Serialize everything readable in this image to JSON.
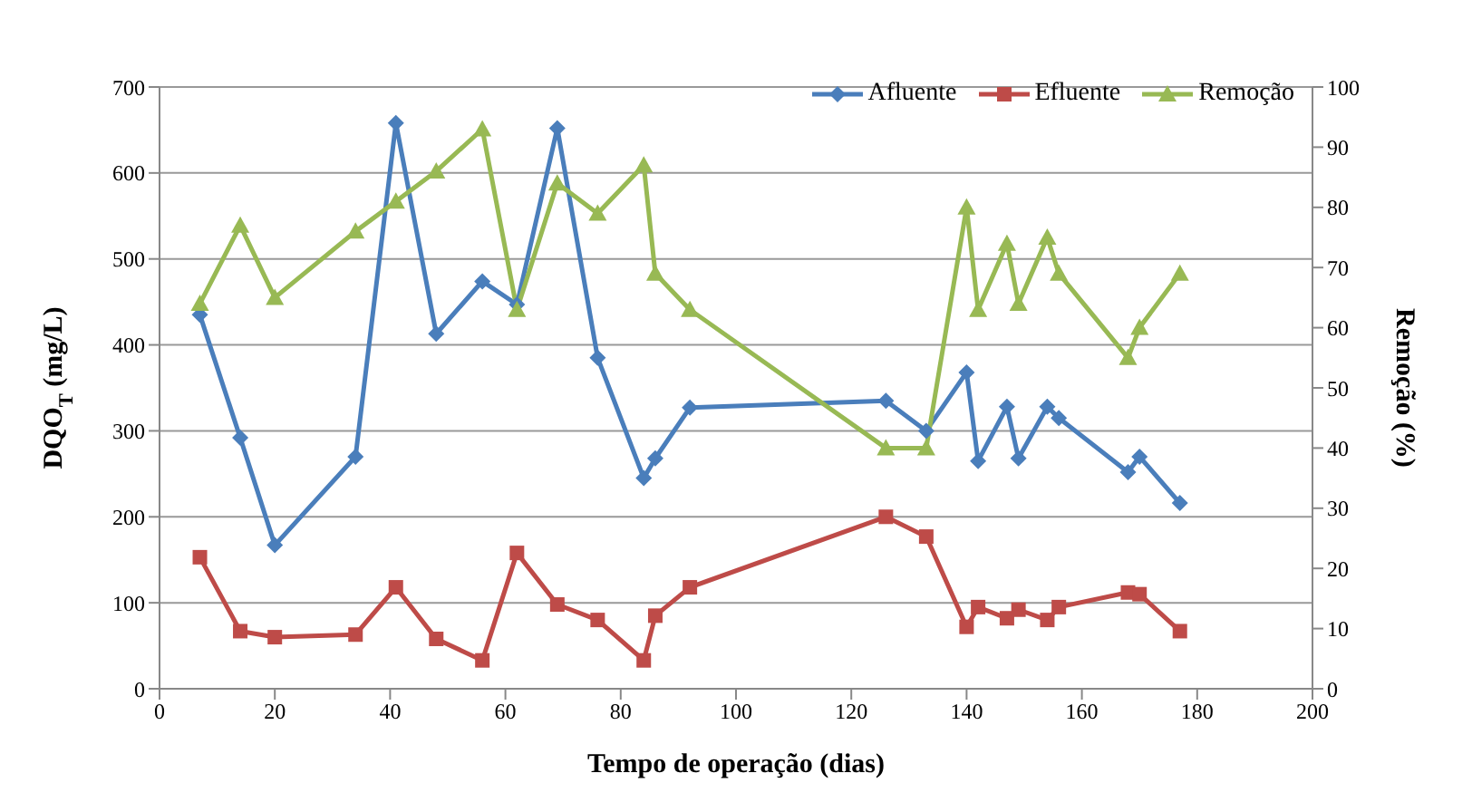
{
  "chart_data": {
    "type": "line",
    "xlabel": "Tempo de operação (dias)",
    "ylabel": "DQO$_{T}$ (mg/L)",
    "y2label": "Remoção (%)",
    "x": [
      7,
      14,
      20,
      34,
      41,
      48,
      56,
      62,
      69,
      76,
      84,
      86,
      92,
      126,
      133,
      140,
      142,
      147,
      149,
      154,
      156,
      168,
      170,
      177
    ],
    "series": [
      {
        "name": "Afluente",
        "color": "#4a7ebb",
        "marker": "diamond",
        "values": [
          435,
          292,
          167,
          270,
          658,
          413,
          474,
          447,
          652,
          385,
          245,
          268,
          327,
          335,
          300,
          368,
          265,
          328,
          268,
          328,
          315,
          252,
          270,
          216
        ]
      },
      {
        "name": "Efluente",
        "color": "#be4b48",
        "marker": "square",
        "values": [
          153,
          67,
          60,
          63,
          118,
          58,
          33,
          158,
          98,
          80,
          33,
          85,
          118,
          200,
          177,
          72,
          95,
          82,
          92,
          80,
          95,
          112,
          110,
          67
        ]
      },
      {
        "name": "Remoção",
        "color": "#98b954",
        "marker": "triangle",
        "axis": "y2",
        "values": [
          64,
          77,
          65,
          76,
          81,
          86,
          93,
          63,
          84,
          79,
          87,
          69,
          63,
          40,
          40,
          80,
          63,
          74,
          64,
          75,
          69,
          55,
          60,
          69
        ]
      }
    ],
    "xlim": [
      0,
      200
    ],
    "xticks": [
      0,
      20,
      40,
      60,
      80,
      100,
      120,
      140,
      160,
      180,
      200
    ],
    "ylim": [
      0,
      700
    ],
    "yticks": [
      0,
      100,
      200,
      300,
      400,
      500,
      600,
      700
    ],
    "y2lim": [
      0,
      100
    ],
    "y2ticks": [
      0,
      10,
      20,
      30,
      40,
      50,
      60,
      70,
      80,
      90,
      100
    ],
    "grid": "y",
    "legend": "top right"
  }
}
